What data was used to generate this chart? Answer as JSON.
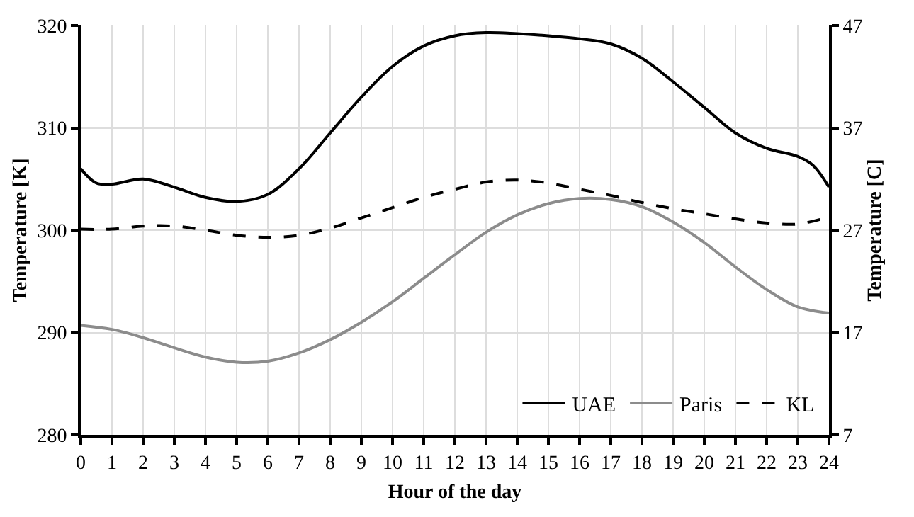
{
  "chart_data": {
    "type": "line",
    "xlabel": "Hour of the day",
    "ylabel": "Temperature [K]",
    "y2label": "Temperature [C]",
    "x": [
      0,
      1,
      2,
      3,
      4,
      5,
      6,
      7,
      8,
      9,
      10,
      11,
      12,
      13,
      14,
      15,
      16,
      17,
      18,
      19,
      20,
      21,
      22,
      23,
      24
    ],
    "series": [
      {
        "name": "UAE",
        "color": "#000000",
        "line_style": "solid",
        "x": [
          0,
          0.5,
          1,
          2,
          3,
          4,
          5,
          6,
          7,
          8,
          9,
          10,
          11,
          12,
          13,
          14,
          15,
          16,
          17,
          18,
          19,
          20,
          21,
          22,
          23,
          23.5,
          24
        ],
        "values": [
          306,
          304.6,
          304.5,
          305,
          304.2,
          303.2,
          302.8,
          303.5,
          306,
          309.5,
          313,
          316,
          318,
          319,
          319.3,
          319.2,
          319,
          318.7,
          318.2,
          316.8,
          314.5,
          312,
          309.5,
          308,
          307.2,
          306.3,
          304.2
        ]
      },
      {
        "name": "Paris",
        "color": "#8c8c8c",
        "line_style": "solid",
        "values": [
          290.7,
          290.3,
          289.5,
          288.5,
          287.6,
          287.1,
          287.2,
          288,
          289.3,
          291,
          293,
          295.3,
          297.6,
          299.8,
          301.5,
          302.6,
          303.1,
          303,
          302.3,
          300.8,
          298.8,
          296.4,
          294.2,
          292.5,
          291.9
        ]
      },
      {
        "name": "KL",
        "color": "#000000",
        "line_style": "dashed",
        "values": [
          300.1,
          300.1,
          300.4,
          300.4,
          300,
          299.5,
          299.3,
          299.5,
          300.2,
          301.2,
          302.2,
          303.2,
          304,
          304.7,
          304.9,
          304.6,
          304,
          303.4,
          302.7,
          302.1,
          301.6,
          301.1,
          300.7,
          300.6,
          301.3
        ]
      }
    ],
    "xlim": [
      0,
      24
    ],
    "xticks": [
      0,
      1,
      2,
      3,
      4,
      5,
      6,
      7,
      8,
      9,
      10,
      11,
      12,
      13,
      14,
      15,
      16,
      17,
      18,
      19,
      20,
      21,
      22,
      23,
      24
    ],
    "ylim": [
      280,
      320
    ],
    "yticks": [
      280,
      290,
      300,
      310,
      320
    ],
    "y2lim": [
      7,
      47
    ],
    "y2ticks": [
      7,
      17,
      27,
      37,
      47
    ],
    "grid": true,
    "legend": "bottom right",
    "marker": "none"
  }
}
